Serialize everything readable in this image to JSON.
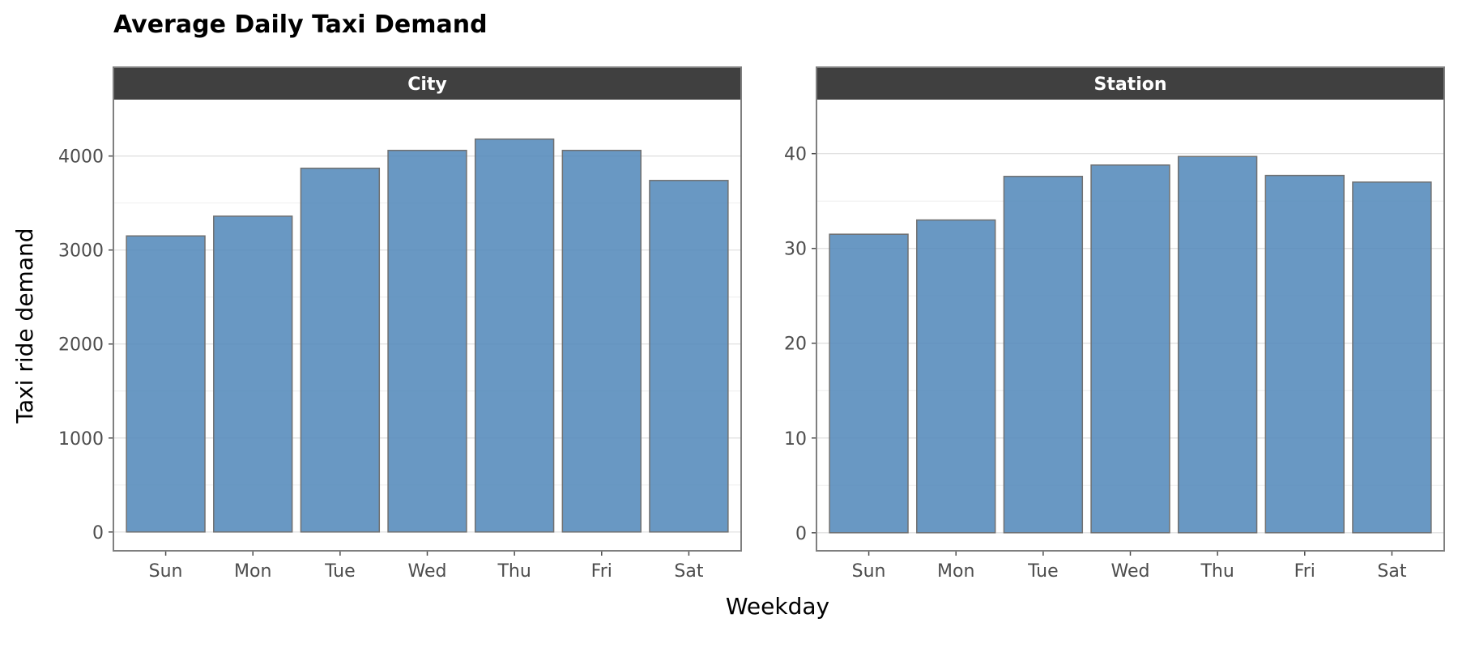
{
  "chart_data": {
    "type": "bar",
    "title": "Average Daily Taxi Demand",
    "xlabel": "Weekday",
    "ylabel": "Taxi ride demand",
    "categories": [
      "Sun",
      "Mon",
      "Tue",
      "Wed",
      "Thu",
      "Fri",
      "Sat"
    ],
    "grid": true,
    "facets": [
      {
        "label": "City",
        "ylim": [
          -200,
          4600
        ],
        "yticks": [
          0,
          1000,
          2000,
          3000,
          4000
        ],
        "values": [
          3150,
          3360,
          3870,
          4060,
          4180,
          4060,
          3740
        ]
      },
      {
        "label": "Station",
        "ylim": [
          -1.9,
          45.7
        ],
        "yticks": [
          0,
          10,
          20,
          30,
          40
        ],
        "values": [
          31.5,
          33.0,
          37.6,
          38.8,
          39.7,
          37.7,
          37.0
        ]
      }
    ],
    "colors": {
      "bar_fill": "#4f86b9",
      "bar_edge": "#707070",
      "strip_bg": "#404040",
      "panel_border": "#7f7f7f",
      "grid_major": "#dedede",
      "grid_minor": "#eeeeee",
      "tick": "#4d4d4d"
    }
  }
}
